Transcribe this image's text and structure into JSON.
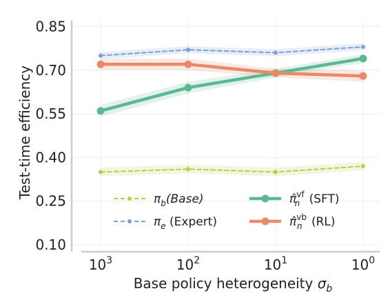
{
  "chart_data": {
    "type": "line",
    "xlabel_main": "Base policy heterogeneity ",
    "xlabel_symbol": "σ",
    "xlabel_sub": "b",
    "ylabel": "Test-time efficiency",
    "x_ticks": [
      {
        "base": "10",
        "exp": "3"
      },
      {
        "base": "10",
        "exp": "2"
      },
      {
        "base": "10",
        "exp": "1"
      },
      {
        "base": "10",
        "exp": "0"
      }
    ],
    "y_ticks": [
      "0.10",
      "0.25",
      "0.40",
      "0.55",
      "0.70",
      "0.85"
    ],
    "y_tick_values": [
      0.1,
      0.25,
      0.4,
      0.55,
      0.7,
      0.85
    ],
    "ylim": [
      0.1,
      0.87
    ],
    "x_index": [
      0,
      1,
      2,
      3
    ],
    "grid": true,
    "legend_placement": "lower center, two columns",
    "series": [
      {
        "key": "base",
        "legend_symbol": "π",
        "legend_sub": "b",
        "legend_rest": "(Base)",
        "color": "#b5cf4a",
        "dashed": true,
        "marker_size": "small",
        "values": [
          0.35,
          0.36,
          0.35,
          0.37
        ],
        "band": [
          0.015,
          0.015,
          0.015,
          0.015
        ]
      },
      {
        "key": "expert",
        "legend_symbol": "π",
        "legend_sub": "e",
        "legend_rest": " (Expert)",
        "color": "#7b9fd6",
        "dashed": true,
        "marker_size": "small",
        "values": [
          0.75,
          0.77,
          0.76,
          0.78
        ],
        "band": [
          0.012,
          0.012,
          0.012,
          0.012
        ]
      },
      {
        "key": "sft",
        "legend_symbol": "π̂",
        "legend_sub": "n",
        "legend_sup": "vf",
        "legend_rest": " (SFT)",
        "color": "#5cb892",
        "dashed": false,
        "marker_size": "large",
        "values": [
          0.56,
          0.64,
          0.69,
          0.74
        ],
        "band": [
          0.02,
          0.02,
          0.015,
          0.015
        ]
      },
      {
        "key": "rl",
        "legend_symbol": "π̂",
        "legend_sub": "n",
        "legend_sup": "vb",
        "legend_rest": " (RL)",
        "color": "#e8896a",
        "dashed": false,
        "marker_size": "large",
        "values": [
          0.72,
          0.72,
          0.69,
          0.68
        ],
        "band": [
          0.02,
          0.02,
          0.015,
          0.02
        ]
      }
    ]
  }
}
